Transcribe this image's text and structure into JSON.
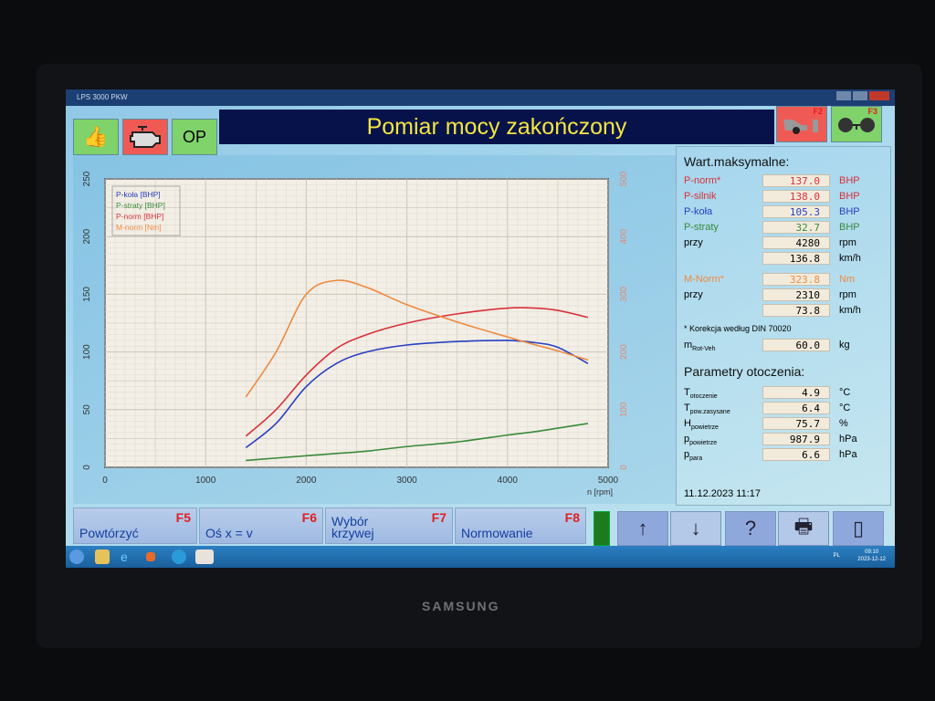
{
  "window": {
    "title": "LPS 3000 PKW"
  },
  "toolbar": {
    "ok_icon": "thumbs-up-icon",
    "engine_icon": "engine-icon",
    "op_label": "OP",
    "title": "Pomiar mocy zakończony",
    "f2_label": "F2",
    "f3_label": "F3",
    "f2_icon": "car-tow-icon",
    "f3_icon": "axle-icon"
  },
  "colors": {
    "p_kola": "#2a3fc0",
    "p_straty": "#3a8a3a",
    "p_norm": "#d8303a",
    "m_norm": "#ee8a40",
    "title_text": "#f3e640",
    "title_bg": "#08124a"
  },
  "max_values": {
    "heading": "Wart.maksymalne:",
    "rows": [
      {
        "label": "P-norm*",
        "value": "137.0",
        "unit": "BHP"
      },
      {
        "label": "P-silnik",
        "value": "138.0",
        "unit": "BHP"
      },
      {
        "label": "P-koła",
        "value": "105.3",
        "unit": "BHP"
      },
      {
        "label": "P-straty",
        "value": "32.7",
        "unit": "BHP"
      },
      {
        "label": "przy",
        "value": "4280",
        "unit": "rpm"
      },
      {
        "label": "",
        "value": "136.8",
        "unit": "km/h"
      },
      {
        "label": "M-Norm*",
        "value": "323.8",
        "unit": "Nm"
      },
      {
        "label": "przy",
        "value": "2310",
        "unit": "rpm"
      },
      {
        "label": "",
        "value": "73.8",
        "unit": "km/h"
      }
    ],
    "correction_note": "* Korekcja według DIN 70020",
    "mass": {
      "label": "m",
      "sub": "Rot-Veh",
      "value": "60.0",
      "unit": "kg"
    }
  },
  "ambient": {
    "heading": "Parametry otoczenia:",
    "rows": [
      {
        "label": "T",
        "sub": "otoczenie",
        "value": "4.9",
        "unit": "°C"
      },
      {
        "label": "T",
        "sub": "pow.zasysane",
        "value": "6.4",
        "unit": "°C"
      },
      {
        "label": "H",
        "sub": "powietrze",
        "value": "75.7",
        "unit": "%"
      },
      {
        "label": "p",
        "sub": "powietrze",
        "value": "987.9",
        "unit": "hPa"
      },
      {
        "label": "p",
        "sub": "para",
        "value": "6.6",
        "unit": "hPa"
      }
    ],
    "datetime": "11.12.2023  11:17"
  },
  "function_keys": [
    {
      "key": "F5",
      "label": "Powtórzyć"
    },
    {
      "key": "F6",
      "label": "Oś x = v"
    },
    {
      "key": "F7",
      "label": "Wybór krzywej"
    },
    {
      "key": "F8",
      "label": "Normowanie"
    }
  ],
  "icon_buttons": [
    "arrow-up-icon",
    "arrow-down-icon",
    "help-icon",
    "printer-icon",
    "exit-icon"
  ],
  "icon_glyphs": [
    "↑",
    "↓",
    "?",
    "🖶",
    "▯"
  ],
  "taskbar": {
    "lang": "PL",
    "time": "09:10",
    "date": "2023-12-12"
  },
  "monitor_logo": "SAMSUNG",
  "chart_data": {
    "type": "line",
    "xlabel": "n [rpm]",
    "xlim": [
      0,
      5000
    ],
    "xticks": [
      "0",
      "1000",
      "2000",
      "3000",
      "4000",
      "5000"
    ],
    "ylim_left": [
      0,
      250
    ],
    "yticks_left": [
      "0",
      "50",
      "100",
      "150",
      "200",
      "250"
    ],
    "ylim_right": [
      0,
      500
    ],
    "yticks_right": [
      "0",
      "100",
      "200",
      "300",
      "400",
      "500"
    ],
    "grid": true,
    "legend_position": "top-left",
    "x": [
      1400,
      1700,
      2000,
      2300,
      2600,
      3000,
      3500,
      4000,
      4280,
      4500,
      4800
    ],
    "series": [
      {
        "name": "P-koła [BHP]",
        "axis": "left",
        "color": "#2a3fc0",
        "values": [
          17,
          38,
          70,
          90,
          100,
          106,
          109,
          110,
          108,
          104,
          90
        ]
      },
      {
        "name": "P-straty [BHP]",
        "axis": "left",
        "color": "#3a8a3a",
        "values": [
          6,
          8,
          10,
          12,
          14,
          18,
          22,
          28,
          31,
          34,
          38
        ]
      },
      {
        "name": "P-norm [BHP]",
        "axis": "left",
        "color": "#d8303a",
        "values": [
          27,
          50,
          80,
          103,
          115,
          125,
          133,
          138,
          138,
          136,
          130
        ]
      },
      {
        "name": "M-norm [Nm]",
        "axis": "right",
        "color": "#ee8a40",
        "values": [
          122,
          200,
          300,
          324,
          312,
          282,
          252,
          226,
          212,
          202,
          186
        ]
      }
    ]
  }
}
